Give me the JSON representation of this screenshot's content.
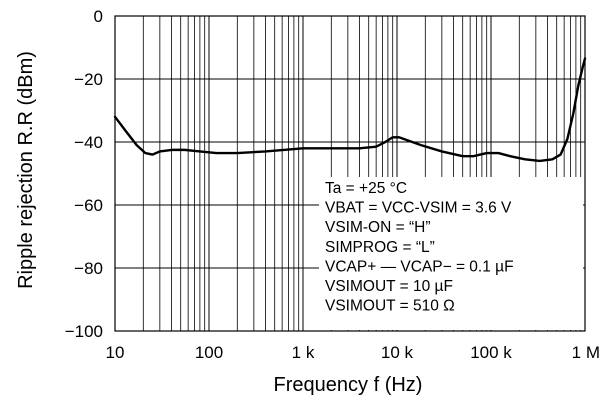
{
  "chart_data": {
    "type": "line",
    "title": "",
    "xlabel": "Frequency f (Hz)",
    "ylabel": "Ripple rejection R.R (dBm)",
    "x_scale": "log",
    "xlim": [
      10,
      1000000
    ],
    "ylim": [
      -100,
      0
    ],
    "grid": true,
    "x_ticks": [
      {
        "value": 10,
        "label": "10"
      },
      {
        "value": 100,
        "label": "100"
      },
      {
        "value": 1000,
        "label": "1 k"
      },
      {
        "value": 10000,
        "label": "10 k"
      },
      {
        "value": 100000,
        "label": "100 k"
      },
      {
        "value": 1000000,
        "label": "1 M"
      }
    ],
    "y_ticks": [
      {
        "value": 0,
        "label": "0"
      },
      {
        "value": -20,
        "label": "−20"
      },
      {
        "value": -40,
        "label": "−40"
      },
      {
        "value": -60,
        "label": "−60"
      },
      {
        "value": -80,
        "label": "−80"
      },
      {
        "value": -100,
        "label": "−100"
      }
    ],
    "series": [
      {
        "color": "#000000",
        "x": [
          10,
          13,
          17,
          21,
          25,
          30,
          40,
          55,
          80,
          120,
          200,
          400,
          1000,
          2000,
          4000,
          6000,
          7500,
          9000,
          10500,
          13000,
          18000,
          30000,
          50000,
          65000,
          90000,
          120000,
          160000,
          230000,
          330000,
          450000,
          550000,
          650000,
          750000,
          850000,
          950000,
          1000000
        ],
        "y": [
          -32,
          -36.5,
          -41,
          -43.5,
          -44,
          -43,
          -42.5,
          -42.5,
          -43,
          -43.5,
          -43.5,
          -43,
          -42,
          -42,
          -42,
          -41.5,
          -40,
          -38.5,
          -38.5,
          -39.5,
          -41,
          -43,
          -44.5,
          -44.5,
          -43.5,
          -43.5,
          -44.5,
          -45.5,
          -46,
          -45.5,
          -44,
          -39,
          -31,
          -22,
          -16,
          -13.5
        ]
      }
    ],
    "annotations": [
      "Ta = +25 °C",
      "VBAT = VCC-VSIM = 3.6 V",
      "VSIM-ON = “H”",
      "SIMPROG = “L”",
      "VCAP+ — VCAP− = 0.1 µF",
      "VSIMOUT = 10 µF",
      "VSIMOUT = 510 Ω"
    ]
  }
}
